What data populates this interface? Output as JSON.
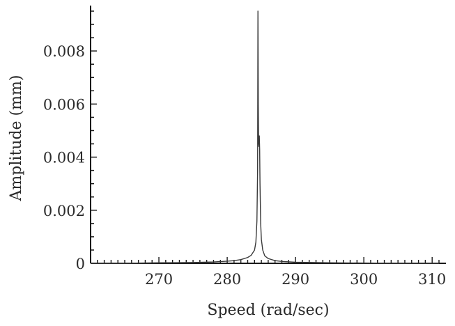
{
  "chart_data": {
    "type": "line",
    "title": "",
    "xlabel": "Speed (rad/sec)",
    "ylabel": "Amplitude (mm)",
    "xlim": [
      260,
      311
    ],
    "ylim": [
      0,
      0.0095
    ],
    "xticks": [
      {
        "value": 270,
        "label": "270"
      },
      {
        "value": 280,
        "label": "280"
      },
      {
        "value": 290,
        "label": "290"
      },
      {
        "value": 300,
        "label": "300"
      },
      {
        "value": 310,
        "label": "310"
      }
    ],
    "yticks": [
      {
        "value": 0,
        "label": "0"
      },
      {
        "value": 0.002,
        "label": "0.002"
      },
      {
        "value": 0.004,
        "label": "0.004"
      },
      {
        "value": 0.006,
        "label": "0.006"
      },
      {
        "value": 0.008,
        "label": "0.008"
      }
    ],
    "grid": false,
    "legend": "none",
    "series": [
      {
        "color": "#3a3a3a",
        "x": [
          260,
          265,
          270,
          275,
          278,
          280,
          281,
          282,
          283,
          283.5,
          284,
          284.2,
          284.35,
          284.45,
          284.5,
          284.55,
          284.6,
          284.65,
          284.7,
          284.75,
          284.8,
          284.9,
          285.0,
          285.2,
          285.5,
          286,
          287,
          288,
          290,
          295,
          300,
          305,
          311
        ],
        "y": [
          0.0,
          0.0,
          2e-05,
          3e-05,
          5e-05,
          8e-05,
          0.0001,
          0.00014,
          0.00022,
          0.0003,
          0.0005,
          0.0008,
          0.0016,
          0.0035,
          0.0095,
          0.006,
          0.0045,
          0.0044,
          0.0048,
          0.0043,
          0.003,
          0.0015,
          0.0009,
          0.0005,
          0.00028,
          0.00018,
          0.0001,
          7e-05,
          4e-05,
          2e-05,
          1e-05,
          0.0,
          0.0
        ]
      }
    ]
  }
}
